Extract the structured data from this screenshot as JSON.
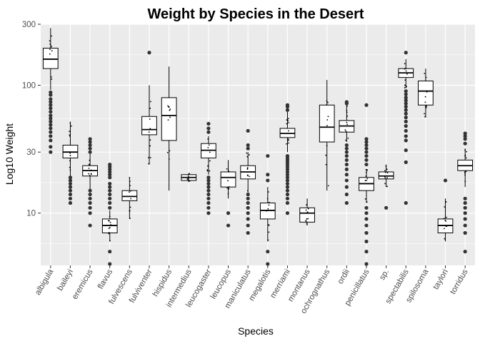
{
  "chart_data": {
    "type": "box",
    "title": "Weight by Species in the Desert",
    "xlabel": "Species",
    "ylabel": "Log10 Weight",
    "y_scale": "log10",
    "ylim": [
      3.9,
      300
    ],
    "y_ticks": [
      10,
      30,
      100,
      300
    ],
    "y_tick_labels": [
      "10",
      "30",
      "100",
      "300"
    ],
    "grid": true,
    "panel_background": "#EBEBEB",
    "grid_color": "#FFFFFF",
    "box_fill": "#FFFFFF",
    "line_color": "#000000",
    "outlier_color": "#333333",
    "jitter_color": "#000000",
    "categories": [
      "albigula",
      "baileyi",
      "eremicus",
      "flavus",
      "fulvescens",
      "fulviventer",
      "hispidus",
      "intermedius",
      "leucogaster",
      "leucopus",
      "maniculatus",
      "megalotis",
      "merriami",
      "montanus",
      "ochrognathus",
      "ordii",
      "penicillatus",
      "sp.",
      "spectabilis",
      "spilosoma",
      "taylori",
      "torridus"
    ],
    "boxes": [
      {
        "q1": 135,
        "median": 160,
        "q3": 195,
        "whisker_low": 92,
        "whisker_high": 280,
        "outliers": [
          30,
          33,
          37,
          40,
          43,
          46,
          49,
          52,
          55,
          58,
          62,
          66,
          70,
          74,
          78,
          84,
          88
        ]
      },
      {
        "q1": 27,
        "median": 30,
        "q3": 34,
        "whisker_low": 19.5,
        "whisker_high": 52,
        "outliers": [
          12,
          13,
          14,
          15,
          16,
          17,
          18,
          19
        ]
      },
      {
        "q1": 19.5,
        "median": 21.5,
        "q3": 23.5,
        "whisker_low": 15.5,
        "whisker_high": 29,
        "outliers": [
          8,
          10,
          11,
          12,
          13,
          14,
          15,
          30,
          32,
          34,
          36,
          38
        ]
      },
      {
        "q1": 7,
        "median": 8,
        "q3": 9,
        "whisker_low": 6,
        "whisker_high": 10.5,
        "outliers": [
          4,
          5,
          11,
          12,
          13,
          14,
          15,
          16,
          17,
          19,
          20,
          21,
          22,
          23,
          24
        ]
      },
      {
        "q1": 12.5,
        "median": 13.5,
        "q3": 15,
        "whisker_low": 9,
        "whisker_high": 19
      },
      {
        "q1": 41,
        "median": 45,
        "q3": 57,
        "whisker_low": 24,
        "whisker_high": 100,
        "outliers": [
          180
        ]
      },
      {
        "q1": 37,
        "median": 58,
        "q3": 80,
        "whisker_low": 15,
        "whisker_high": 140
      },
      {
        "q1": 18,
        "median": 19,
        "q3": 20,
        "whisker_low": 17.5,
        "whisker_high": 20.5
      },
      {
        "q1": 27,
        "median": 31,
        "q3": 35,
        "whisker_low": 20,
        "whisker_high": 40,
        "outliers": [
          10,
          11,
          12,
          13,
          14,
          15,
          16,
          17,
          18,
          19,
          43,
          46,
          50
        ]
      },
      {
        "q1": 16,
        "median": 19,
        "q3": 21,
        "whisker_low": 13,
        "whisker_high": 26,
        "outliers": [
          8,
          10
        ]
      },
      {
        "q1": 18.5,
        "median": 21,
        "q3": 23.5,
        "whisker_low": 14.5,
        "whisker_high": 30,
        "outliers": [
          7,
          8,
          9,
          10,
          11,
          12,
          13,
          14,
          32,
          34,
          44
        ]
      },
      {
        "q1": 9,
        "median": 10.5,
        "q3": 12,
        "whisker_low": 6,
        "whisker_high": 16,
        "outliers": [
          4,
          5,
          18,
          20,
          28
        ]
      },
      {
        "q1": 39,
        "median": 42,
        "q3": 46,
        "whisker_low": 30,
        "whisker_high": 62,
        "outliers": [
          10,
          12,
          13,
          14,
          15,
          16,
          17,
          18,
          19,
          20,
          21,
          22,
          23,
          24,
          25,
          26,
          27,
          28,
          64,
          68,
          70
        ]
      },
      {
        "q1": 8.5,
        "median": 10,
        "q3": 11,
        "whisker_low": 8,
        "whisker_high": 13
      },
      {
        "q1": 36,
        "median": 47,
        "q3": 70,
        "whisker_low": 15,
        "whisker_high": 110
      },
      {
        "q1": 43,
        "median": 48,
        "q3": 53,
        "whisker_low": 36,
        "whisker_high": 70,
        "outliers": [
          12,
          14,
          16,
          18,
          20,
          22,
          24,
          26,
          28,
          30,
          32,
          34,
          72,
          74
        ]
      },
      {
        "q1": 15,
        "median": 17,
        "q3": 19,
        "whisker_low": 12,
        "whisker_high": 22,
        "outliers": [
          4,
          5,
          6,
          7,
          8,
          9,
          10,
          11,
          24,
          26,
          28,
          30,
          32,
          34,
          36,
          38,
          70
        ]
      },
      {
        "q1": 18.5,
        "median": 19.5,
        "q3": 21,
        "whisker_low": 16,
        "whisker_high": 24,
        "outliers": [
          11
        ]
      },
      {
        "q1": 115,
        "median": 125,
        "q3": 135,
        "whisker_low": 95,
        "whisker_high": 160,
        "outliers": [
          12,
          25,
          31,
          37,
          40,
          44,
          48,
          52,
          56,
          60,
          64,
          68,
          72,
          76,
          80,
          85,
          90,
          180
        ]
      },
      {
        "q1": 70,
        "median": 90,
        "q3": 108,
        "whisker_low": 56,
        "whisker_high": 135
      },
      {
        "q1": 7,
        "median": 8,
        "q3": 9,
        "whisker_low": 6,
        "whisker_high": 13,
        "outliers": [
          18
        ]
      },
      {
        "q1": 21.5,
        "median": 23.5,
        "q3": 26,
        "whisker_low": 16,
        "whisker_high": 32,
        "outliers": [
          5,
          7,
          8,
          9,
          10,
          11,
          12,
          13,
          35,
          38,
          40,
          42
        ]
      }
    ]
  }
}
